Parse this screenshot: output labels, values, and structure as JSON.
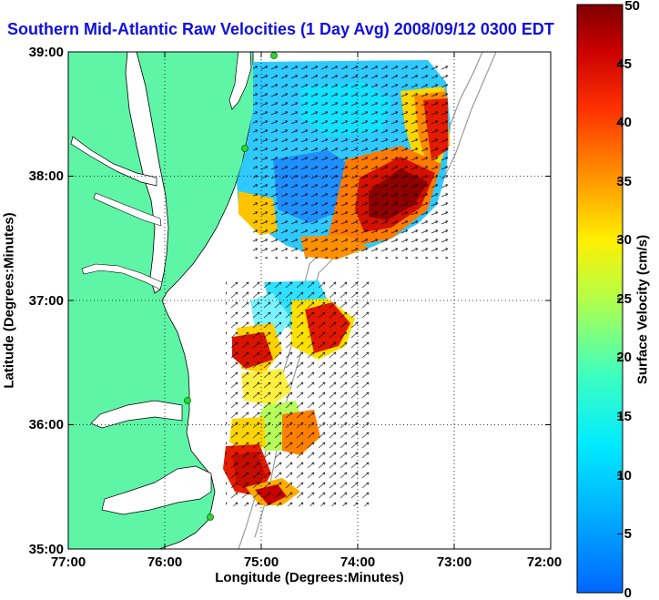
{
  "title": "Southern Mid-Atlantic Raw Velocities (1 Day Avg) 2008/09/12 0300 EDT",
  "xlabel": "Longitude (Degrees:Minutes)",
  "ylabel": "Latitude (Degrees:Minutes)",
  "colorbar": {
    "title": "Surface Velocity (cm/s)",
    "ticks": [
      "0",
      "5",
      "10",
      "15",
      "20",
      "25",
      "30",
      "35",
      "40",
      "45",
      "50"
    ]
  },
  "x_ticks": [
    "77:00",
    "76:00",
    "75:00",
    "74:00",
    "73:00",
    "72:00"
  ],
  "y_ticks": [
    "39:00",
    "38:00",
    "37:00",
    "36:00",
    "35:00"
  ],
  "colors": {
    "land": "#5ef5a7",
    "title": "#1010e0",
    "coast_line": "#000000",
    "bathymetry": "#9a9a9a"
  },
  "chart_data": {
    "type": "heatmap",
    "title": "Southern Mid-Atlantic Raw Velocities (1 Day Avg) 2008/09/12 0300 EDT",
    "xlabel": "Longitude (Degrees:Minutes)",
    "ylabel": "Latitude (Degrees:Minutes)",
    "xlim": [
      -77,
      -72
    ],
    "ylim": [
      35,
      39
    ],
    "colorbar_range": [
      0,
      50
    ],
    "colorbar_label": "Surface Velocity (cm/s)",
    "grid": true
  }
}
